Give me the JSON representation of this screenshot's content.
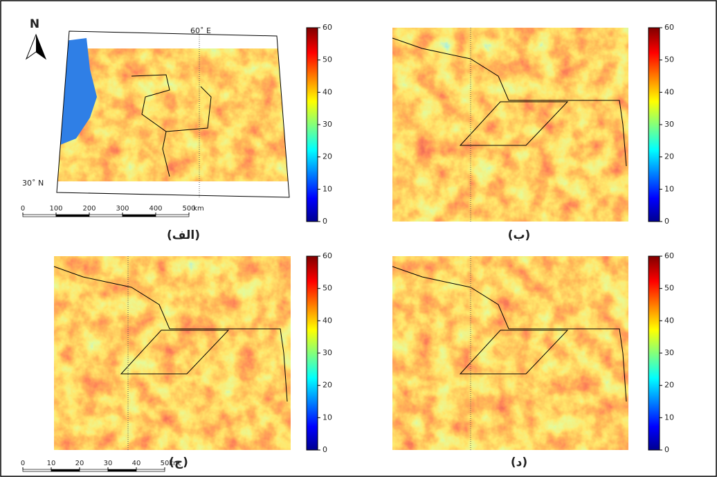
{
  "north_arrow": "N",
  "lon_label": "60˚ E",
  "lat_label": "30˚ N",
  "panels": [
    {
      "label": "(الف)",
      "colorbar": {
        "lim": [
          0,
          60
        ],
        "ticks": [
          0,
          10,
          20,
          30,
          40,
          50,
          60
        ]
      }
    },
    {
      "label": "(ب)",
      "colorbar": {
        "lim": [
          0,
          60
        ],
        "ticks": [
          0,
          10,
          20,
          30,
          40,
          50,
          60
        ]
      }
    },
    {
      "label": "(ج)",
      "colorbar": {
        "lim": [
          0,
          60
        ],
        "ticks": [
          0,
          10,
          20,
          30,
          40,
          50,
          60
        ]
      }
    },
    {
      "label": "(د)",
      "colorbar": {
        "lim": [
          0,
          60
        ],
        "ticks": [
          0,
          10,
          20,
          30,
          40,
          50,
          60
        ]
      }
    }
  ],
  "scale_bars": [
    {
      "ticks": [
        0,
        100,
        200,
        300,
        400,
        500
      ],
      "unit": "km"
    },
    {
      "ticks": [
        0,
        10,
        20,
        30,
        40,
        50
      ],
      "unit": "km"
    }
  ]
}
